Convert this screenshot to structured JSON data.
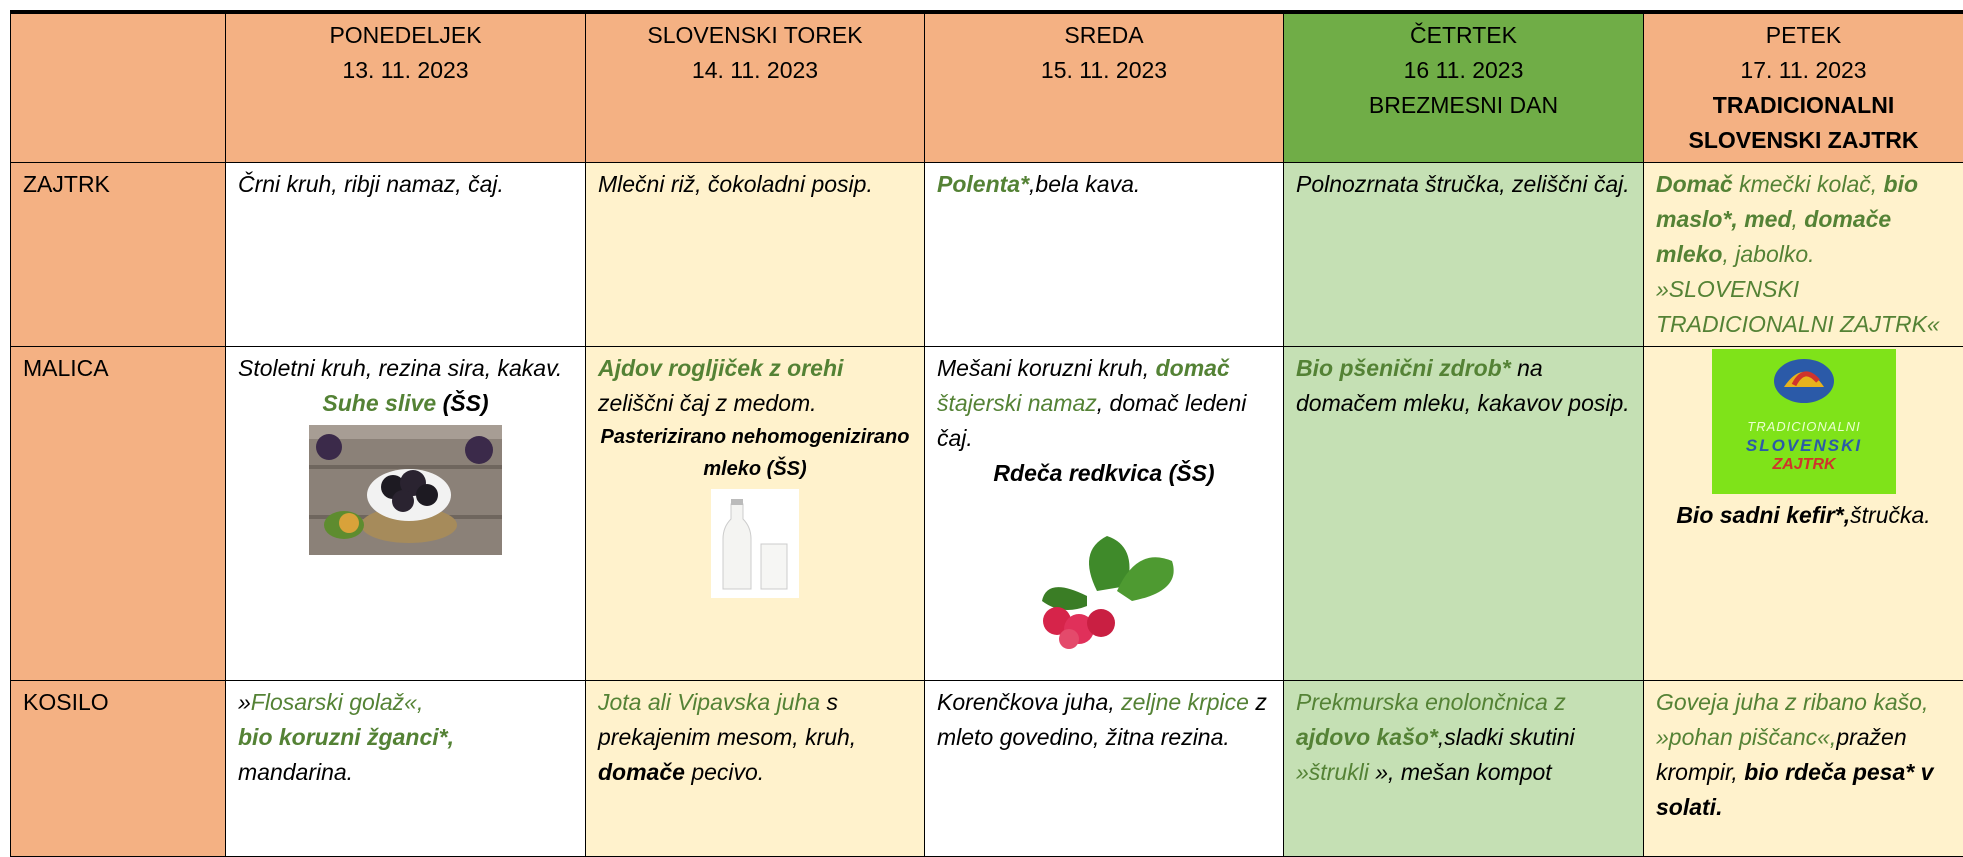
{
  "header": {
    "days": [
      {
        "lines": [
          "PONEDELJEK",
          "13. 11. 2023"
        ]
      },
      {
        "lines": [
          "SLOVENSKI TOREK",
          "14. 11. 2023"
        ]
      },
      {
        "lines": [
          "SREDA",
          "15. 11. 2023"
        ]
      },
      {
        "lines": [
          "ČETRTEK",
          "16 11. 2023",
          "BREZMESNI DAN"
        ]
      },
      {
        "lines": [
          "PETEK",
          "17. 11. 2023",
          "TRADICIONALNI SLOVENSKI ZAJTRK"
        ]
      }
    ]
  },
  "rows": [
    {
      "label": "ZAJTRK",
      "cells": [
        [
          "Črni kruh, ribji namaz, čaj."
        ],
        [
          "Mlečni riž, čokoladni posip."
        ],
        [
          "Polenta*",
          ",bela kava."
        ],
        [
          "Polnozrnata štručka, zeliščni čaj."
        ],
        [
          "Domač",
          " kmečki kolač, ",
          "bio maslo*, med",
          ", ",
          "domače mleko",
          ", jabolko.",
          "»SLOVENSKI TRADICIONALNI ZAJTRK«"
        ]
      ]
    },
    {
      "label": "MALICA",
      "cells": [
        [
          "Stoletni kruh, rezina sira, kakav.",
          "Suhe slive",
          " (ŠS)"
        ],
        [
          "Ajdov rogljiček z orehi",
          "zeliščni čaj z medom.",
          "Pasterizirano nehomogenizirano mleko (ŠS)"
        ],
        [
          "Mešani koruzni kruh, ",
          "domač",
          " štajerski namaz",
          ", domač ledeni čaj.",
          "Rdeča redkvica (ŠS)"
        ],
        [
          "Bio pšenični zdrob*",
          " na domačem mleku, kakavov posip."
        ],
        [
          "Bio  sadni kefir*,",
          "štručka."
        ]
      ]
    },
    {
      "label": "KOSILO",
      "cells": [
        [
          " »",
          "Flosarski golaž«,",
          "bio koruzni žganci*,",
          "mandarina."
        ],
        [
          "Jota ali Vipavska juha",
          " s prekajenim mesom, kruh, ",
          "domače",
          " pecivo."
        ],
        [
          "Korenčkova juha, ",
          "zeljne krpice",
          " z mleto govedino, žitna rezina."
        ],
        [
          "Prekmurska enolončnica z ",
          "ajdovo kašo*",
          ",sladki skutini ",
          "»štrukli",
          " », mešan kompot"
        ],
        [
          "Goveja juha z ribano kašo, »pohan piščanc«,",
          "pražen krompir, ",
          "bio rdeča pesa* v solati."
        ]
      ]
    }
  ],
  "logo": [
    "TRADICIONALNI",
    "SLOVENSKI",
    "ZAJTRK"
  ]
}
